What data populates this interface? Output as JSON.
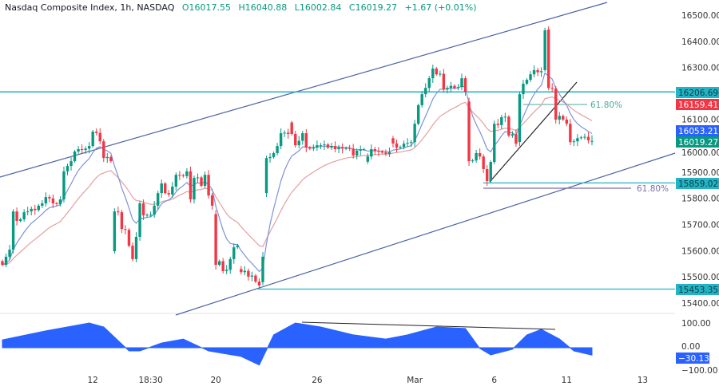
{
  "legend": {
    "symbol": "Nasdaq Composite Index, 1h, NASDAQ",
    "open": "O16017.55",
    "high": "H16040.88",
    "low": "L16002.84",
    "close": "C16019.27",
    "change": "+1.67 (+0.01%)"
  },
  "colors": {
    "up": "#089981",
    "down": "#f23645",
    "fast_ma": "#7d93d8",
    "slow_ma": "#e3a0a0",
    "channel": "#4c63a6",
    "level": "#22b3c5",
    "oscillator": "#2962ff",
    "fib_purple": "#7e6fa8"
  },
  "chart_data": {
    "type": "candlestick",
    "price_ticks": [
      "16500.00",
      "16400.00",
      "16300.00",
      "16100.00",
      "16000.00",
      "15900.00",
      "15800.00",
      "15700.00",
      "15600.00",
      "15500.00",
      "15400.00"
    ],
    "ylim": [
      15400,
      16500
    ],
    "x_ticks": [
      {
        "label": "12",
        "bar": 25
      },
      {
        "label": "18:30",
        "bar": 41
      },
      {
        "label": "20",
        "bar": 59
      },
      {
        "label": "26",
        "bar": 87
      },
      {
        "label": "Mar",
        "bar": 114
      },
      {
        "label": "6",
        "bar": 136
      },
      {
        "label": "11",
        "bar": 156
      },
      {
        "label": "13",
        "bar": 177
      }
    ],
    "candles_open_close": [
      [
        15560,
        15546
      ],
      [
        15546,
        15577
      ],
      [
        15577,
        15604
      ],
      [
        15604,
        15750
      ],
      [
        15750,
        15714
      ],
      [
        15714,
        15720
      ],
      [
        15720,
        15747
      ],
      [
        15747,
        15750
      ],
      [
        15750,
        15760
      ],
      [
        15760,
        15755
      ],
      [
        15755,
        15772
      ],
      [
        15772,
        15781
      ],
      [
        15781,
        15805
      ],
      [
        15805,
        15800
      ],
      [
        15800,
        15781
      ],
      [
        15781,
        15778
      ],
      [
        15778,
        15796
      ],
      [
        15796,
        15903
      ],
      [
        15903,
        15924
      ],
      [
        15924,
        15942
      ],
      [
        15942,
        15979
      ],
      [
        15979,
        15988
      ],
      [
        15988,
        15985
      ],
      [
        15985,
        15990
      ],
      [
        15990,
        16000
      ],
      [
        16000,
        16055
      ],
      [
        16055,
        16050
      ],
      [
        16050,
        16018
      ],
      [
        16018,
        15954
      ],
      [
        15954,
        15958
      ],
      [
        15958,
        15942
      ],
      [
        15598,
        15750
      ],
      [
        15750,
        15747
      ],
      [
        15747,
        15683
      ],
      [
        15683,
        15680
      ],
      [
        15680,
        15619
      ],
      [
        15619,
        15568
      ],
      [
        15568,
        15653
      ],
      [
        15653,
        15781
      ],
      [
        15781,
        15735
      ],
      [
        15735,
        15737
      ],
      [
        15737,
        15738
      ],
      [
        15738,
        15772
      ],
      [
        15772,
        15820
      ],
      [
        15820,
        15857
      ],
      [
        15857,
        15820
      ],
      [
        15820,
        15815
      ],
      [
        15815,
        15845
      ],
      [
        15845,
        15890
      ],
      [
        15890,
        15888
      ],
      [
        15888,
        15885
      ],
      [
        15885,
        15903
      ],
      [
        15903,
        15796
      ],
      [
        15796,
        15878
      ],
      [
        15878,
        15880
      ],
      [
        15880,
        15848
      ],
      [
        15848,
        15890
      ],
      [
        15890,
        15811
      ],
      [
        15811,
        15772
      ],
      [
        15740,
        15546
      ],
      [
        15546,
        15560
      ],
      [
        15560,
        15522
      ],
      [
        15522,
        15527
      ],
      [
        15527,
        15568
      ],
      [
        15568,
        15613
      ],
      [
        15613,
        15620
      ],
      [
        15530,
        15518
      ],
      [
        15518,
        15523
      ],
      [
        15523,
        15501
      ],
      [
        15501,
        15505
      ],
      [
        15505,
        15482
      ],
      [
        15482,
        15467
      ],
      [
        15480,
        15577
      ],
      [
        15820,
        15954
      ],
      [
        15954,
        15958
      ],
      [
        15958,
        15973
      ],
      [
        15973,
        16000
      ],
      [
        16000,
        16049
      ],
      [
        16049,
        16051
      ],
      [
        16051,
        16046
      ],
      [
        16090,
        16046
      ],
      [
        16046,
        16003
      ],
      [
        16003,
        16020
      ],
      [
        16020,
        16049
      ],
      [
        16049,
        15994
      ],
      [
        15994,
        15990
      ],
      [
        15990,
        15994
      ],
      [
        15994,
        16003
      ],
      [
        16003,
        16003
      ],
      [
        16003,
        16006
      ],
      [
        16006,
        15994
      ],
      [
        15994,
        16000
      ],
      [
        16000,
        15988
      ],
      [
        15988,
        15995
      ],
      [
        15995,
        15990
      ],
      [
        15990,
        15992
      ],
      [
        15992,
        15990
      ],
      [
        15990,
        15964
      ],
      [
        15964,
        15982
      ],
      [
        15982,
        15987
      ],
      [
        15987,
        15987
      ],
      [
        15940,
        15960
      ],
      [
        15960,
        15988
      ],
      [
        15988,
        15981
      ],
      [
        15981,
        15979
      ],
      [
        15979,
        15975
      ],
      [
        15975,
        15970
      ],
      [
        15970,
        15976
      ],
      [
        16030,
        16010
      ],
      [
        16010,
        15994
      ],
      [
        15994,
        15996
      ],
      [
        15996,
        16009
      ],
      [
        16009,
        16012
      ],
      [
        16012,
        16015
      ],
      [
        16015,
        16085
      ],
      [
        16085,
        16156
      ],
      [
        16156,
        16198
      ],
      [
        16198,
        16222
      ],
      [
        16222,
        16259
      ],
      [
        16259,
        16296
      ],
      [
        16296,
        16274
      ],
      [
        16274,
        16276
      ],
      [
        16276,
        16216
      ],
      [
        16216,
        16222
      ],
      [
        16222,
        16230
      ],
      [
        16230,
        16222
      ],
      [
        16222,
        16225
      ],
      [
        16225,
        16259
      ],
      [
        16259,
        16207
      ],
      [
        16170,
        15942
      ],
      [
        15942,
        15945
      ],
      [
        15945,
        15973
      ],
      [
        15973,
        15960
      ],
      [
        15960,
        15912
      ],
      [
        15912,
        15866
      ],
      [
        15866,
        15939
      ],
      [
        15939,
        16085
      ],
      [
        16085,
        16080
      ],
      [
        16080,
        16110
      ],
      [
        16110,
        16112
      ],
      [
        16112,
        16040
      ],
      [
        16040,
        16045
      ],
      [
        16045,
        16009
      ],
      [
        16015,
        16198
      ],
      [
        16198,
        16238
      ],
      [
        16238,
        16253
      ],
      [
        16253,
        16274
      ],
      [
        16274,
        16290
      ],
      [
        16290,
        16282
      ],
      [
        16282,
        16286
      ],
      [
        16290,
        16442
      ],
      [
        16445,
        16222
      ],
      [
        16222,
        16220
      ],
      [
        16220,
        16101
      ],
      [
        16101,
        16115
      ],
      [
        16115,
        16101
      ],
      [
        16101,
        16085
      ],
      [
        16085,
        16015
      ],
      [
        16015,
        16018
      ],
      [
        16018,
        16030
      ],
      [
        16030,
        16033
      ],
      [
        16033,
        16035
      ],
      [
        16035,
        16022
      ],
      [
        16017.55,
        16019.27
      ]
    ],
    "price_labels": [
      {
        "value": "16206.69",
        "color": "#22b3c5"
      },
      {
        "value": "16159.41",
        "color": "#f23645"
      },
      {
        "value": "16053.21",
        "color": "#2962ff"
      },
      {
        "value": "16019.27",
        "color": "#089981"
      },
      {
        "value": "15859.02",
        "color": "#22b3c5"
      },
      {
        "value": "15453.35",
        "color": "#22b3c5"
      }
    ],
    "levels": [
      16206.69,
      15859.02,
      15453.35
    ],
    "fib_labels": [
      "61.80%",
      "61.80%"
    ],
    "oscillator": {
      "ticks": [
        "100.00",
        "0.00",
        "−100.00"
      ],
      "ylim": [
        -100,
        100
      ],
      "current": "−30.13",
      "x_bar": [
        0,
        12,
        24,
        28,
        35,
        38,
        44,
        50,
        57,
        66,
        71,
        75,
        81,
        88,
        97,
        106,
        112,
        120,
        128,
        132,
        135,
        141,
        145,
        149,
        154,
        158,
        163
      ],
      "values": [
        32,
        68,
        100,
        84,
        -13,
        -13,
        19,
        35,
        -13,
        -35,
        -70,
        52,
        100,
        84,
        52,
        35,
        52,
        84,
        78,
        -3,
        -29,
        -6,
        52,
        74,
        35,
        -13,
        -30
      ]
    }
  }
}
